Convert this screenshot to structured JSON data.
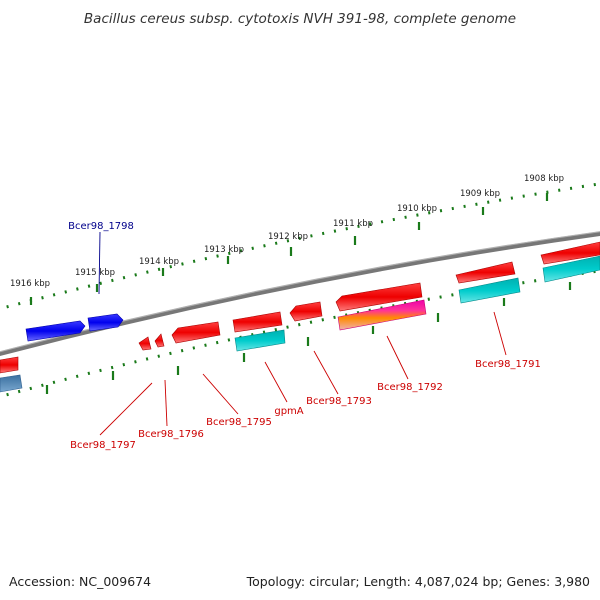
{
  "title": "Bacillus cereus subsp. cytotoxis NVH 391-98, complete genome",
  "accession": "Accession: NC_009674",
  "topology": "Topology: circular; Length: 4,087,024 bp; Genes: 3,980",
  "kbp_labels": [
    "1916 kbp",
    "1915 kbp",
    "1914 kbp",
    "1913 kbp",
    "1912 kbp",
    "1911 kbp",
    "1910 kbp",
    "1909 kbp",
    "1908 kbp"
  ],
  "gene_labels": [
    "Bcer98_1798",
    "Bcer98_1797",
    "Bcer98_1796",
    "Bcer98_1795",
    "gpmA",
    "Bcer98_1793",
    "Bcer98_1792",
    "Bcer98_1791"
  ],
  "colors": {
    "backbone": "#808080",
    "tick": "#1a7a1a",
    "forward_gene": "#0000ee",
    "cds": "#ee0000",
    "cds_companion": "#00c8c8",
    "reverse_strand": "#4682b4",
    "label_blue": "#00008b",
    "label_red": "#cc0000"
  }
}
